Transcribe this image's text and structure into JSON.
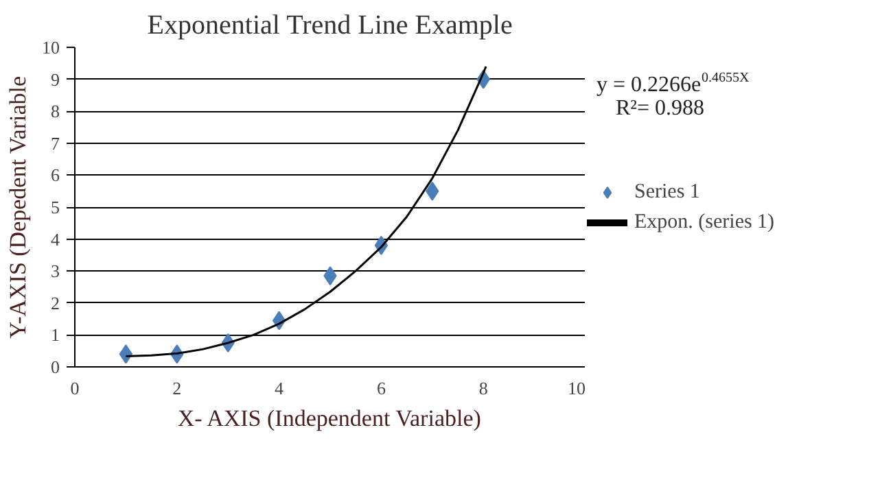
{
  "chart_data": {
    "type": "scatter",
    "title": "Exponential Trend Line Example",
    "xlabel": "X- AXIS (Independent Variable)",
    "ylabel": "Y-AXIS (Depedent Variable",
    "annotations": [
      "y = 0.2266e$^{0.4655X}$",
      "R²= 0.988"
    ],
    "x": [
      1,
      2,
      3,
      4,
      5,
      6,
      7,
      8
    ],
    "series": [
      {
        "name": "Series 1",
        "color": "#4a7ebb",
        "marker": "diamond",
        "values": [
          0.4,
          0.4,
          0.75,
          1.45,
          2.85,
          3.8,
          5.5,
          9.0
        ]
      },
      {
        "name": "Expon. (series 1)",
        "type": "line",
        "color": "#000000",
        "marker": "none",
        "line_style": "solid",
        "x": [
          1,
          1.5,
          2,
          2.5,
          3,
          3.5,
          4,
          4.5,
          5,
          5.5,
          6,
          6.5,
          7,
          7.5,
          8,
          8.05
        ],
        "values": [
          0.33,
          0.36,
          0.42,
          0.55,
          0.75,
          1.0,
          1.35,
          1.8,
          2.35,
          3.0,
          3.75,
          4.7,
          5.9,
          7.4,
          9.2,
          9.4
        ]
      }
    ],
    "xlim": [
      0,
      10
    ],
    "ylim": [
      0,
      10
    ],
    "xticks": [
      0,
      2,
      4,
      6,
      8,
      10
    ],
    "yticks": [
      0,
      1,
      2,
      3,
      4,
      5,
      6,
      7,
      8,
      9,
      10
    ],
    "grid": "y",
    "legend": "right"
  }
}
